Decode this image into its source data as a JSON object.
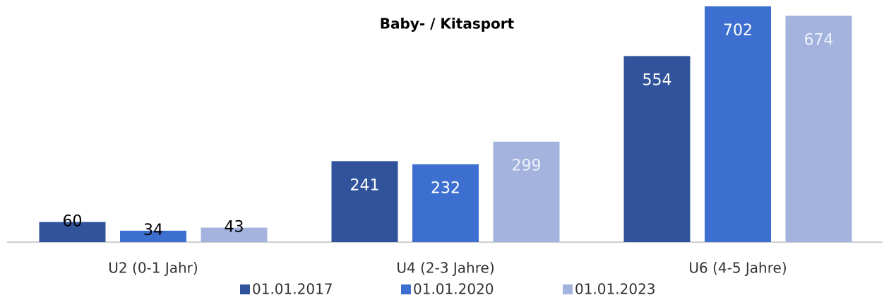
{
  "chart_data": {
    "type": "bar",
    "title": "Baby- / Kitasport",
    "categories": [
      "U2  (0-1 Jahr)",
      "U4  (2-3 Jahre)",
      "U6  (4-5 Jahre)"
    ],
    "series": [
      {
        "name": "01.01.2017",
        "color": "#30539c",
        "values": [
          60,
          241,
          554
        ]
      },
      {
        "name": "01.01.2020",
        "color": "#3d6fd0",
        "values": [
          34,
          232,
          702
        ]
      },
      {
        "name": "01.01.2023",
        "color": "#a3b3de",
        "values": [
          43,
          299,
          674
        ]
      }
    ],
    "legend": "bottom"
  }
}
